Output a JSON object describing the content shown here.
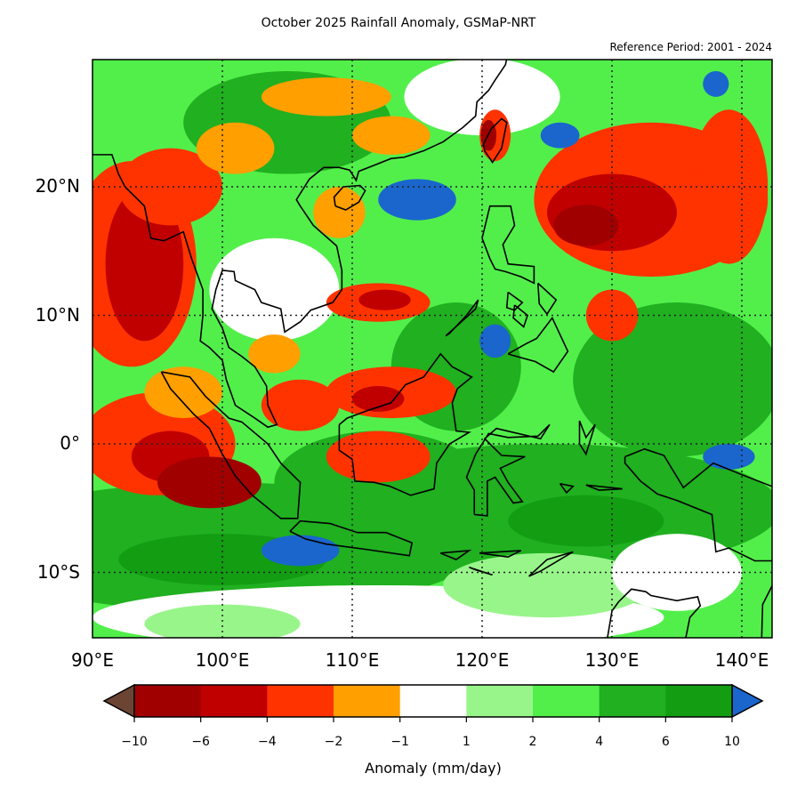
{
  "title": "October 2025 Rainfall Anomaly, GSMaP-NRT",
  "reference_period": "Reference Period: 2001 - 2024",
  "map": {
    "extent": {
      "lon": [
        90,
        142.3
      ],
      "lat": [
        -15,
        30
      ]
    },
    "gridlines": "dotted",
    "lat_ticks": [
      {
        "value": 20,
        "label": "20°N"
      },
      {
        "value": 10,
        "label": "10°N"
      },
      {
        "value": 0,
        "label": "0°"
      },
      {
        "value": -10,
        "label": "10°S"
      }
    ],
    "lon_ticks": [
      {
        "value": 90,
        "label": "90°E"
      },
      {
        "value": 100,
        "label": "100°E"
      },
      {
        "value": 110,
        "label": "110°E"
      },
      {
        "value": 120,
        "label": "120°E"
      },
      {
        "value": 130,
        "label": "130°E"
      },
      {
        "value": 140,
        "label": "140°E"
      }
    ]
  },
  "colorbar": {
    "label": "Anomaly (mm/day)",
    "ticks": [
      "−10",
      "−6",
      "−4",
      "−2",
      "−1",
      "1",
      "2",
      "4",
      "6",
      "10"
    ],
    "under_color": "#6b4434",
    "over_color": "#1a66cc",
    "colors": [
      "#a00000",
      "#c00000",
      "#ff3300",
      "#ff9f00",
      "#ffffff",
      "#98f58a",
      "#52ef4b",
      "#20b020",
      "#139d13"
    ]
  }
}
